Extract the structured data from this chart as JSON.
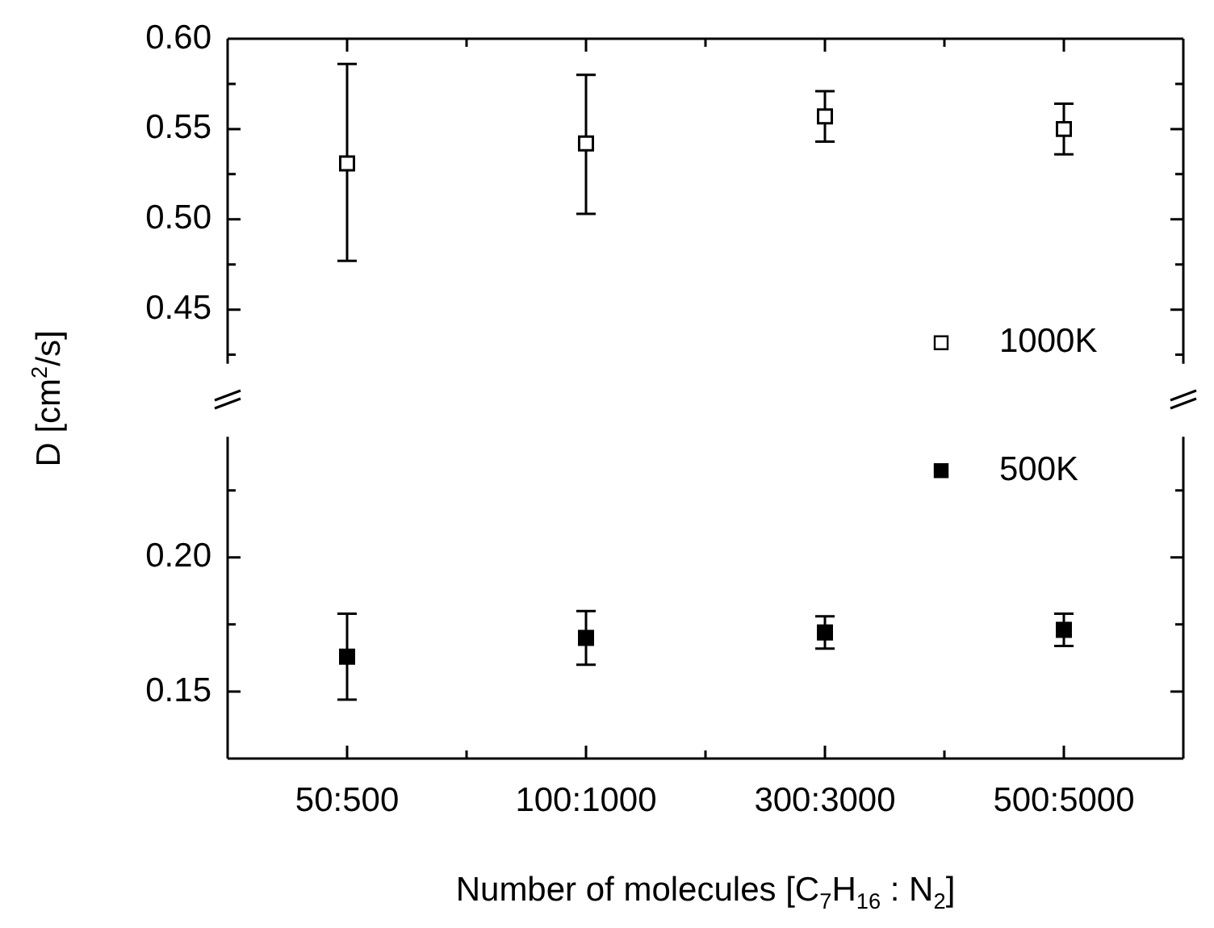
{
  "chart_data": [
    {
      "type": "scatter",
      "ylabel": "D [cm$^{2}$/s]",
      "categories": [
        null,
        null,
        null,
        null
      ],
      "series": [
        {
          "name": "1000K",
          "color": "#ffffff",
          "values": [
            0.531,
            0.542,
            0.557,
            0.55
          ],
          "errors": [
            [
              0.477,
              0.586
            ],
            [
              0.503,
              0.58
            ],
            [
              0.543,
              0.571
            ],
            [
              0.536,
              0.564
            ]
          ]
        }
      ],
      "ylim": [
        0.42,
        0.6
      ],
      "yticks": [
        {
          "value": 0.425,
          "label": null
        },
        {
          "value": 0.45,
          "label": "0.45"
        },
        {
          "value": 0.475,
          "label": null
        },
        {
          "value": 0.5,
          "label": "0.50"
        },
        {
          "value": 0.525,
          "label": null
        },
        {
          "value": 0.55,
          "label": "0.55"
        },
        {
          "value": 0.575,
          "label": null
        },
        {
          "value": 0.6,
          "label": "0.60"
        }
      ],
      "tick_labels": "y",
      "marker": "square",
      "legend": "bottom right",
      "grid": false
    },
    {
      "type": "scatter",
      "xlabel": "Number of molecules [C$_{7}$H$_{16}$ : N$_{2}$]",
      "categories": [
        "50:500",
        "100:1000",
        "300:3000",
        "500:5000"
      ],
      "series": [
        {
          "name": "500K",
          "color": "#000000",
          "values": [
            0.163,
            0.17,
            0.172,
            0.173
          ],
          "errors": [
            [
              0.147,
              0.179
            ],
            [
              0.16,
              0.18
            ],
            [
              0.166,
              0.178
            ],
            [
              0.167,
              0.179
            ]
          ]
        }
      ],
      "ylim": [
        0.125,
        0.245
      ],
      "yticks": [
        {
          "value": 0.15,
          "label": "0.15"
        },
        {
          "value": 0.175,
          "label": null
        },
        {
          "value": 0.2,
          "label": "0.20"
        },
        {
          "value": 0.225,
          "label": null
        }
      ],
      "marker": "square",
      "legend": "top right",
      "grid": false
    }
  ]
}
